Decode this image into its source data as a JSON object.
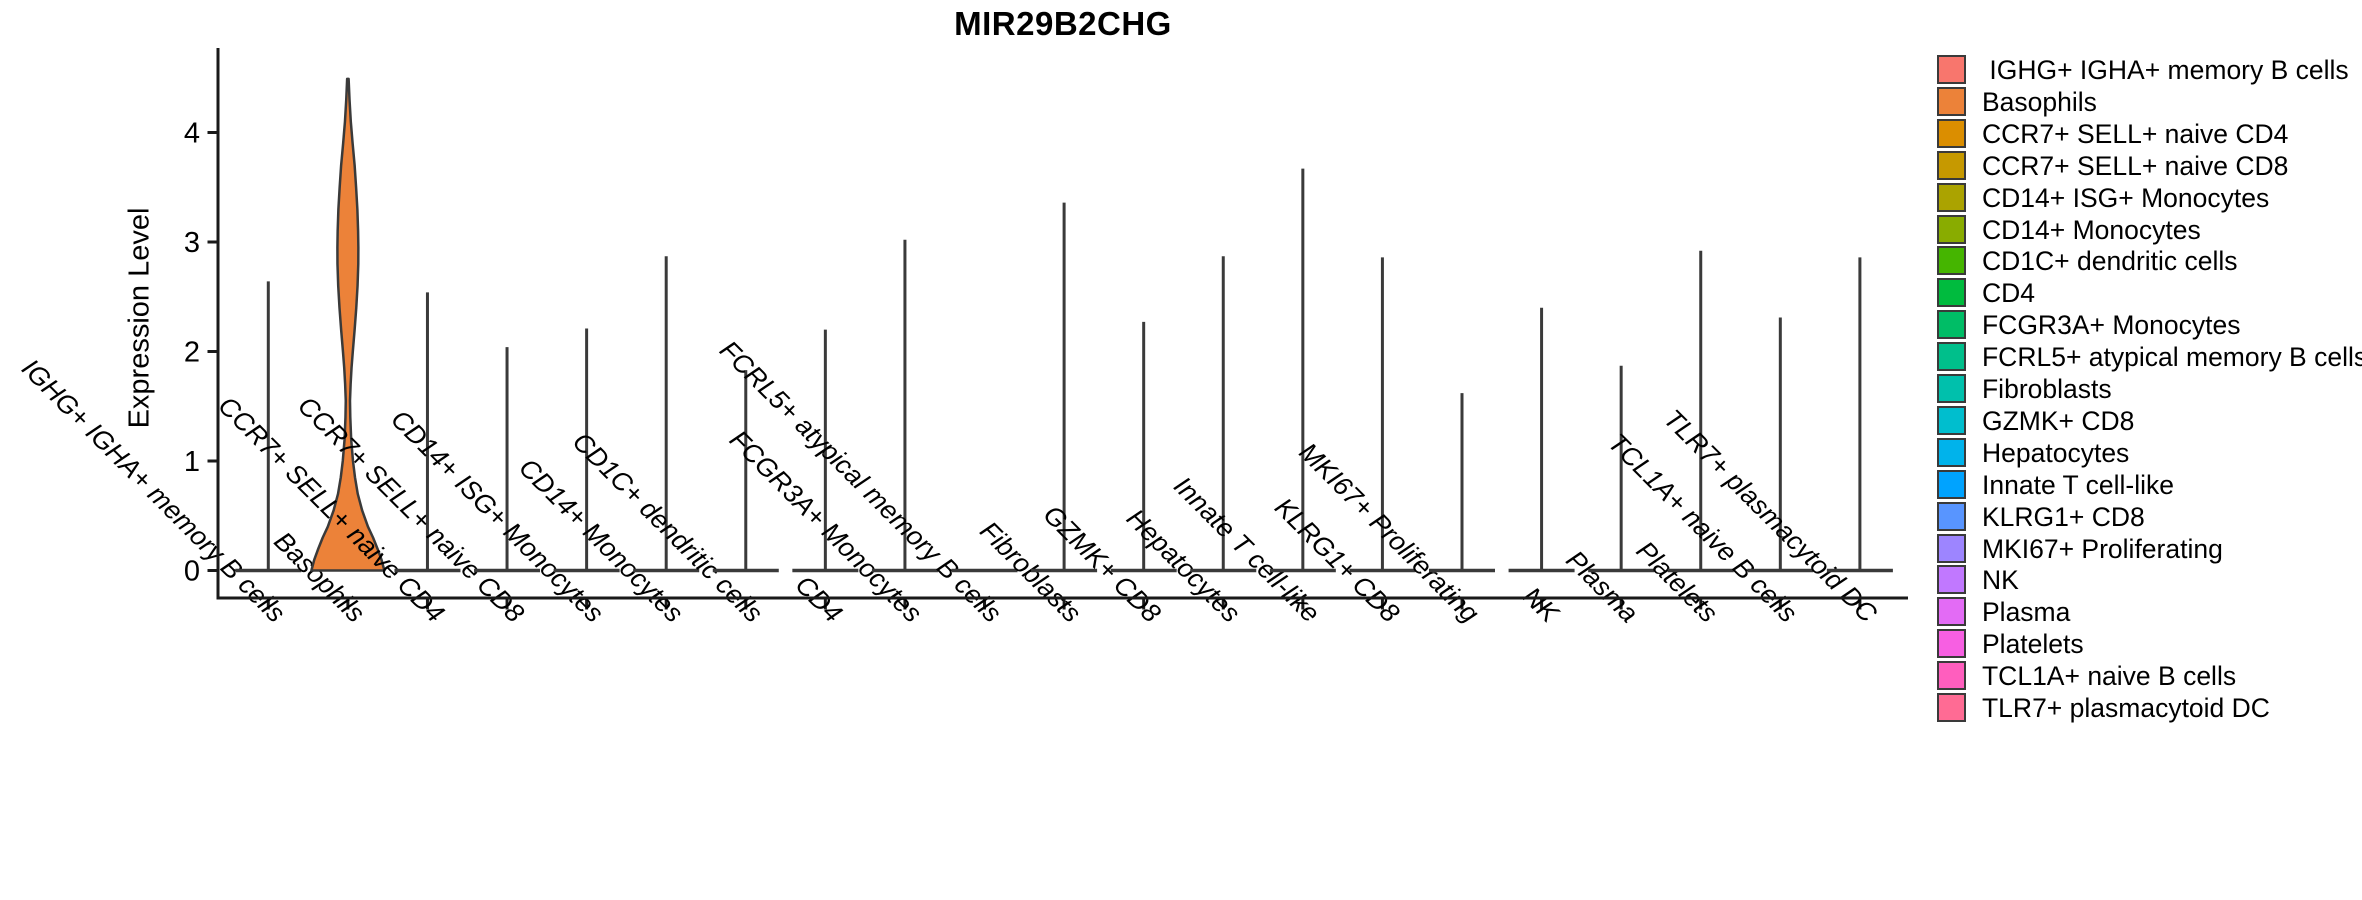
{
  "chart_data": {
    "type": "violin",
    "title": "MIR29B2CHG",
    "xlabel": "",
    "ylabel": "Expression Level",
    "ylim": [
      0,
      4.7
    ],
    "yticks": [
      0,
      1,
      2,
      3,
      4
    ],
    "grid": false,
    "legend_position": "right",
    "x_tick_label_angle": 45,
    "categories": [
      "IGHG+ IGHA+ memory B cells",
      "Basophils",
      "CCR7+ SELL+ naive CD4",
      "CCR7+ SELL+ naive CD8",
      "CD14+ ISG+ Monocytes",
      "CD14+ Monocytes",
      "CD1C+ dendritic cells",
      "CD4",
      "FCGR3A+ Monocytes",
      "FCRL5+ atypical memory B cells",
      "Fibroblasts",
      "GZMK+ CD8",
      "Hepatocytes",
      "Innate T cell-like",
      "KLRG1+ CD8",
      "MKI67+ Proliferating",
      "NK",
      "Plasma",
      "Platelets",
      "TCL1A+ naive B cells",
      "TLR7+ plasmacytoid DC"
    ],
    "colors": [
      "#F8766D",
      "#EC8239",
      "#DB8E00",
      "#C69900",
      "#ABA300",
      "#89AC00",
      "#45B500",
      "#00BB3E",
      "#00BD66",
      "#00BF8B",
      "#00C0AC",
      "#00BECE",
      "#00B3EB",
      "#00A3FF",
      "#5895FF",
      "#9D85FF",
      "#C178FF",
      "#E36BF5",
      "#F75FE2",
      "#FF5EBE",
      "#FF6B94"
    ],
    "max_expression": [
      2.64,
      4.49,
      2.54,
      2.04,
      2.21,
      2.87,
      1.83,
      2.2,
      3.02,
      0.0,
      3.36,
      2.27,
      2.87,
      3.67,
      2.86,
      1.62,
      2.4,
      1.87,
      2.92,
      2.31,
      2.86
    ],
    "basophils_violin": {
      "category": "Basophils",
      "max_value": 4.49,
      "profile": [
        [
          4.49,
          0.02
        ],
        [
          4.3,
          0.045
        ],
        [
          4.1,
          0.08
        ],
        [
          3.9,
          0.13
        ],
        [
          3.7,
          0.185
        ],
        [
          3.5,
          0.225
        ],
        [
          3.3,
          0.26
        ],
        [
          3.1,
          0.28
        ],
        [
          2.95,
          0.287
        ],
        [
          2.8,
          0.285
        ],
        [
          2.6,
          0.265
        ],
        [
          2.4,
          0.23
        ],
        [
          2.2,
          0.185
        ],
        [
          2.0,
          0.135
        ],
        [
          1.85,
          0.1
        ],
        [
          1.7,
          0.075
        ],
        [
          1.55,
          0.058
        ],
        [
          1.4,
          0.066
        ],
        [
          1.2,
          0.09
        ],
        [
          1.0,
          0.14
        ],
        [
          0.85,
          0.195
        ],
        [
          0.7,
          0.27
        ],
        [
          0.55,
          0.39
        ],
        [
          0.4,
          0.55
        ],
        [
          0.3,
          0.69
        ],
        [
          0.2,
          0.81
        ],
        [
          0.1,
          0.92
        ],
        [
          0.0,
          1.0
        ]
      ]
    }
  },
  "legend": {
    "labels": [
      " IGHG+ IGHA+ memory B cells",
      "Basophils",
      "CCR7+ SELL+ naive CD4",
      "CCR7+ SELL+ naive CD8",
      "CD14+ ISG+ Monocytes",
      "CD14+ Monocytes",
      "CD1C+ dendritic cells",
      "CD4",
      "FCGR3A+ Monocytes",
      "FCRL5+ atypical memory B cells",
      "Fibroblasts",
      "GZMK+ CD8",
      "Hepatocytes",
      "Innate T cell-like",
      "KLRG1+ CD8",
      "MKI67+ Proliferating",
      "NK",
      "Plasma",
      "Platelets",
      "TCL1A+ naive B cells",
      "TLR7+ plasmacytoid DC"
    ]
  }
}
